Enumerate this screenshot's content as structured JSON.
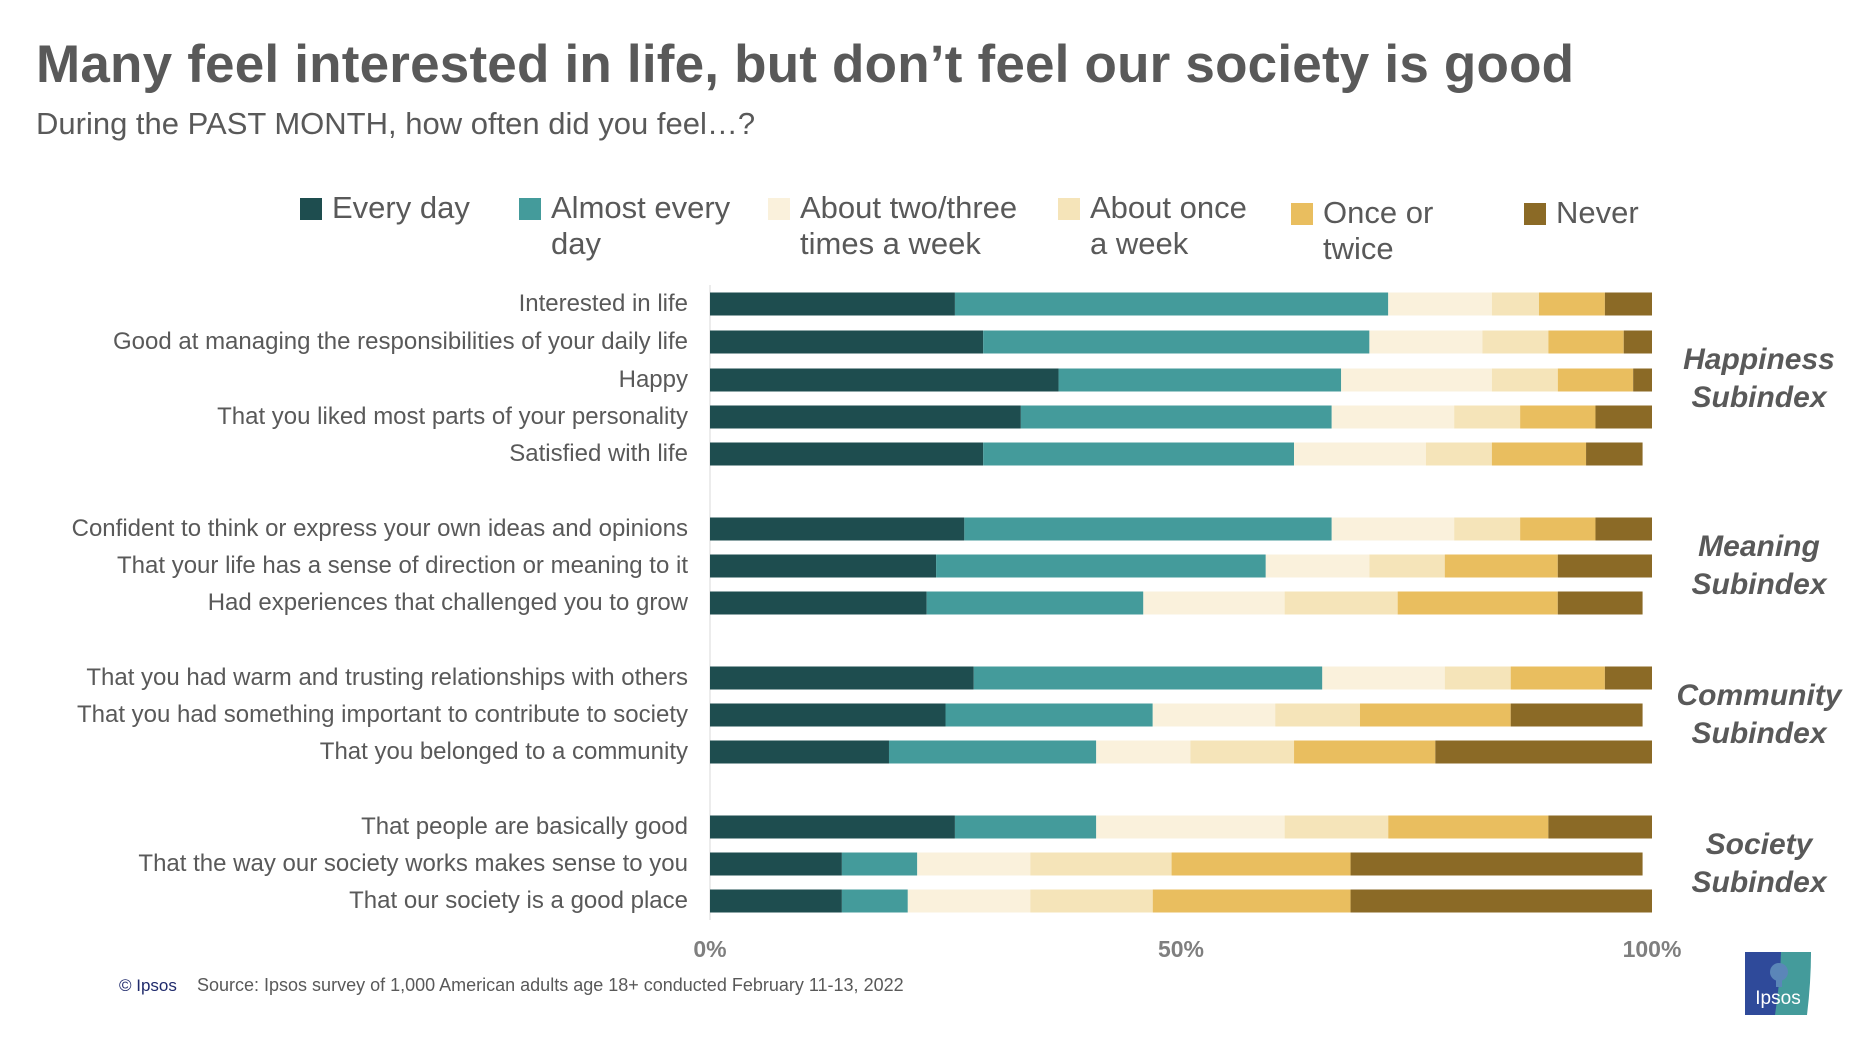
{
  "chart_data": {
    "type": "bar",
    "orientation": "horizontal",
    "stacked": true,
    "title": "Many feel interested in life, but don’t feel our society is good",
    "subtitle": "During the PAST MONTH, how often did you feel…?",
    "categories": [
      "Interested in life",
      "Good at managing the responsibilities of your daily life",
      "Happy",
      "That you liked most parts of your personality",
      "Satisfied with life",
      "Confident to think or express your own ideas and opinions",
      "That your life has a sense of direction or meaning to it",
      "Had experiences that challenged you to grow",
      "That you had warm and trusting relationships with others",
      "That you had something important to contribute to society",
      "That you belonged to a community",
      "That  people are basically good",
      "That the way our society works makes sense to you",
      "That our society is a good place"
    ],
    "groups": [
      {
        "label": "Happiness Subindex",
        "lines": [
          "Happiness",
          "Subindex"
        ],
        "rows": [
          0,
          1,
          2,
          3,
          4
        ]
      },
      {
        "label": "Meaning Subindex",
        "lines": [
          "Meaning",
          "Subindex"
        ],
        "rows": [
          5,
          6,
          7
        ]
      },
      {
        "label": "Community Subindex",
        "lines": [
          "Community",
          "Subindex"
        ],
        "rows": [
          8,
          9,
          10
        ]
      },
      {
        "label": "Society Subindex",
        "lines": [
          "Society",
          "Subindex"
        ],
        "rows": [
          11,
          12,
          13
        ]
      }
    ],
    "series": [
      {
        "name": "Every day",
        "color": "#1e4d4f",
        "values": [
          26,
          29,
          37,
          33,
          29,
          27,
          24,
          23,
          28,
          25,
          19,
          26,
          14,
          14
        ]
      },
      {
        "name": "Almost every day",
        "color": "#449b9b",
        "values": [
          46,
          41,
          30,
          33,
          33,
          39,
          35,
          23,
          37,
          22,
          22,
          15,
          8,
          7
        ]
      },
      {
        "name": "About two/three times a week",
        "color": "#faf1dc",
        "values": [
          11,
          12,
          16,
          13,
          14,
          13,
          11,
          15,
          13,
          13,
          10,
          20,
          12,
          13
        ]
      },
      {
        "name": "About once a week",
        "color": "#f5e4b9",
        "values": [
          5,
          7,
          7,
          7,
          7,
          7,
          8,
          12,
          7,
          9,
          11,
          11,
          15,
          13
        ]
      },
      {
        "name": "Once or twice",
        "color": "#e9be5f",
        "values": [
          7,
          8,
          8,
          8,
          10,
          8,
          12,
          17,
          10,
          16,
          15,
          17,
          19,
          21
        ]
      },
      {
        "name": "Never",
        "color": "#8b6a26",
        "values": [
          5,
          3,
          2,
          6,
          6,
          6,
          10,
          9,
          5,
          14,
          23,
          11,
          31,
          32
        ]
      }
    ],
    "legend_lines": [
      [
        "Every day"
      ],
      [
        "Almost every",
        "day"
      ],
      [
        "About two/three",
        "times a week"
      ],
      [
        "About once",
        "a week"
      ],
      [
        "Once or",
        "twice"
      ],
      [
        "Never"
      ]
    ],
    "legend_position": "top",
    "xlim": [
      0,
      100
    ],
    "xticks": [
      "0%",
      "50%",
      "100%"
    ],
    "grid": false
  },
  "footer": {
    "copyright": "© Ipsos",
    "source": "Source: Ipsos survey of 1,000 American adults age 18+ conducted February 11-13, 2022"
  },
  "logo": {
    "text": "Ipsos",
    "colors": [
      "#2f4a9a",
      "#449b9b"
    ]
  }
}
